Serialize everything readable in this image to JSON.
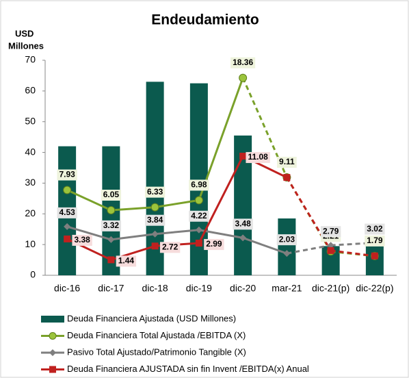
{
  "chart_data": {
    "type": "bar_line",
    "title": "Endeudamiento",
    "ylabel_lines": [
      "USD",
      "Millones"
    ],
    "categories": [
      "dic-16",
      "dic-17",
      "dic-18",
      "dic-19",
      "dic-20",
      "mar-21",
      "dic-21(p)",
      "dic-22(p)"
    ],
    "ylim": [
      0,
      70
    ],
    "yticks": [
      0,
      10,
      20,
      30,
      40,
      50,
      60,
      70
    ],
    "y2lim": [
      0,
      20
    ],
    "series": [
      {
        "name": "Deuda Financiera Ajustada (USD Millones)",
        "type": "bar",
        "color": "#0b5a4e",
        "values": [
          42,
          42,
          63,
          62.5,
          45.5,
          18.5,
          9.5,
          10.5
        ]
      },
      {
        "name": "Deuda Financiera Total Ajustada /EBITDA (X)",
        "type": "line",
        "axis": "y2",
        "color": "#7aa12a",
        "marker": "circle",
        "dash_from": 4,
        "label_bg": "#eef3dc",
        "values": [
          7.93,
          6.05,
          6.33,
          6.98,
          18.36,
          9.11,
          2.21,
          1.79
        ]
      },
      {
        "name": "Pasivo Total Ajustado/Patrimonio Tangible (X)",
        "type": "line",
        "axis": "y2",
        "color": "#7f7f7f",
        "marker": "diamond",
        "dash_from": 5,
        "label_bg": "#e4e4e4",
        "values": [
          4.53,
          3.32,
          3.84,
          4.22,
          3.48,
          2.03,
          2.79,
          3.02
        ]
      },
      {
        "name": "Deuda Financiera AJUSTADA sin fin Invent /EBITDA(x)   Anual",
        "type": "line",
        "axis": "y2",
        "color": "#c0211f",
        "marker": "square",
        "dash_from": 5,
        "label_bg": "#f6dcdc",
        "values": [
          3.38,
          1.44,
          2.72,
          2.99,
          11.08,
          9.1,
          2.3,
          1.8
        ],
        "value_labels": [
          "3.38",
          "1.44",
          "2.72",
          "2.99",
          "11.08",
          null,
          null,
          null
        ]
      }
    ]
  }
}
